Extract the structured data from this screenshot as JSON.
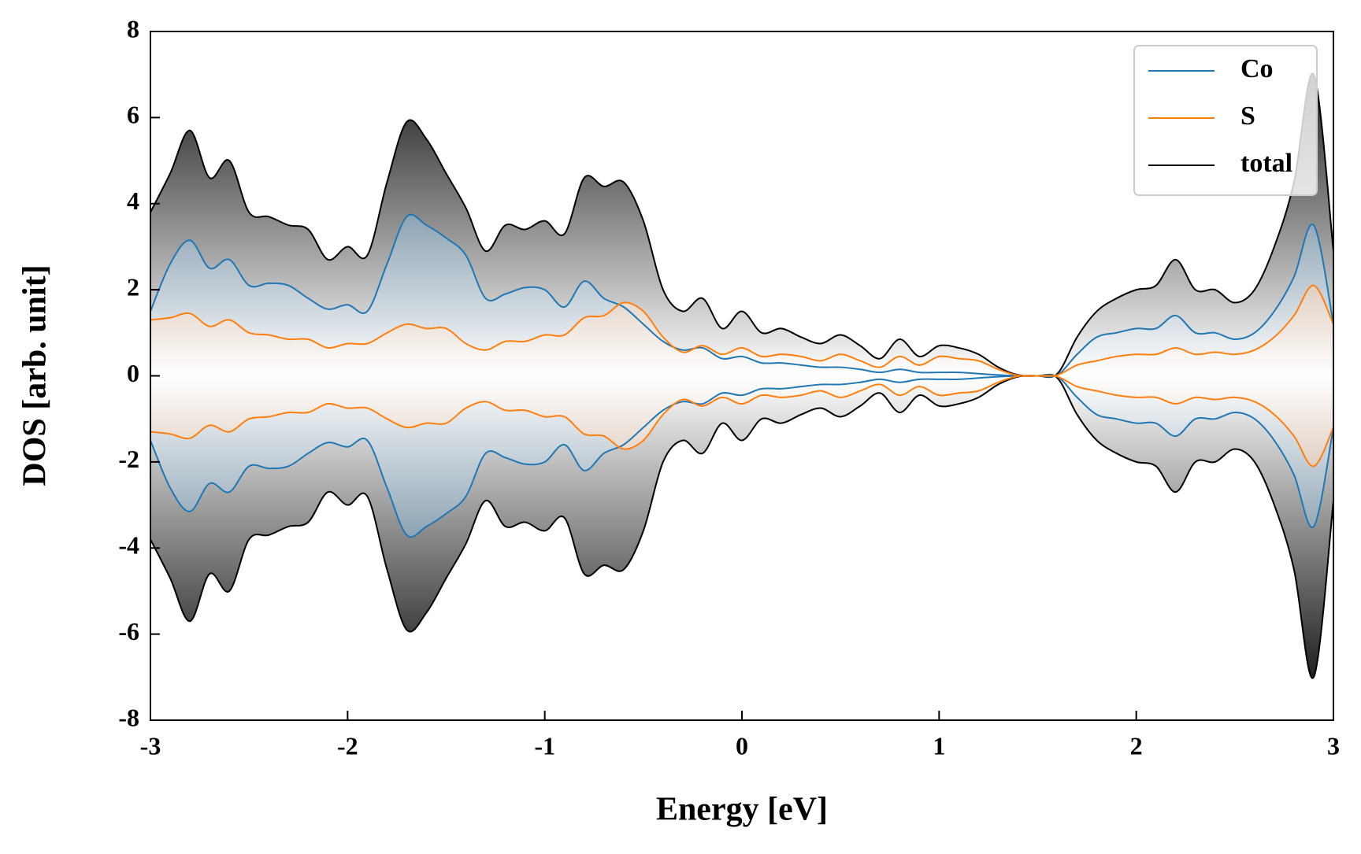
{
  "chart_data": {
    "type": "mirrored-area-line",
    "xlabel": "Energy [eV]",
    "ylabel": "DOS [arb. unit]",
    "x": [
      -3,
      -2.9,
      -2.8,
      -2.7,
      -2.6,
      -2.5,
      -2.4,
      -2.3,
      -2.2,
      -2.1,
      -2,
      -1.9,
      -1.8,
      -1.7,
      -1.6,
      -1.5,
      -1.4,
      -1.3,
      -1.2,
      -1.1,
      -1,
      -0.9,
      -0.8,
      -0.7,
      -0.6,
      -0.5,
      -0.4,
      -0.3,
      -0.2,
      -0.1,
      0,
      0.1,
      0.2,
      0.3,
      0.4,
      0.5,
      0.6,
      0.7,
      0.8,
      0.9,
      1,
      1.1,
      1.2,
      1.3,
      1.4,
      1.5,
      1.6,
      1.7,
      1.8,
      1.9,
      2,
      2.1,
      2.2,
      2.3,
      2.4,
      2.5,
      2.6,
      2.7,
      2.8,
      2.9,
      3
    ],
    "series": [
      {
        "name": "total",
        "color": "#000000",
        "fill": [
          "#ffffff",
          "#000000"
        ],
        "values": [
          3.8,
          4.7,
          5.7,
          4.6,
          5.0,
          3.8,
          3.7,
          3.5,
          3.4,
          2.7,
          3.0,
          2.8,
          4.5,
          5.9,
          5.5,
          4.7,
          3.9,
          2.9,
          3.5,
          3.4,
          3.6,
          3.3,
          4.6,
          4.4,
          4.5,
          3.6,
          2.0,
          1.5,
          1.8,
          1.1,
          1.5,
          1.0,
          1.1,
          0.9,
          0.75,
          0.95,
          0.7,
          0.4,
          0.85,
          0.45,
          0.7,
          0.65,
          0.5,
          0.2,
          0.02,
          0,
          0.05,
          0.9,
          1.5,
          1.8,
          2.0,
          2.1,
          2.7,
          2.0,
          2.0,
          1.7,
          2.0,
          3.0,
          4.5,
          7.0,
          2.9
        ]
      },
      {
        "name": "Co",
        "color": "#1f77b4",
        "fill": [
          "#ffffff",
          "#0b3a5e"
        ],
        "values": [
          1.5,
          2.6,
          3.15,
          2.5,
          2.7,
          2.1,
          2.15,
          2.1,
          1.8,
          1.55,
          1.65,
          1.5,
          2.6,
          3.7,
          3.5,
          3.2,
          2.8,
          1.8,
          1.9,
          2.05,
          2.0,
          1.6,
          2.2,
          1.8,
          1.6,
          1.2,
          0.8,
          0.6,
          0.65,
          0.4,
          0.45,
          0.3,
          0.3,
          0.25,
          0.2,
          0.2,
          0.15,
          0.08,
          0.15,
          0.08,
          0.08,
          0.08,
          0.05,
          0.02,
          0,
          0,
          0.02,
          0.5,
          0.9,
          1.0,
          1.1,
          1.1,
          1.4,
          1.0,
          1.0,
          0.85,
          1.0,
          1.5,
          2.3,
          3.5,
          1.2
        ]
      },
      {
        "name": "S",
        "color": "#ff7f0e",
        "fill": [
          "#ffffff",
          "#8a4a17"
        ],
        "values": [
          1.3,
          1.35,
          1.45,
          1.15,
          1.3,
          1.0,
          0.95,
          0.85,
          0.85,
          0.65,
          0.75,
          0.75,
          1.0,
          1.2,
          1.1,
          1.1,
          0.75,
          0.6,
          0.8,
          0.8,
          0.95,
          0.95,
          1.35,
          1.4,
          1.7,
          1.5,
          0.9,
          0.55,
          0.7,
          0.5,
          0.65,
          0.45,
          0.5,
          0.45,
          0.35,
          0.5,
          0.35,
          0.2,
          0.45,
          0.25,
          0.45,
          0.4,
          0.35,
          0.15,
          0.01,
          0,
          0.02,
          0.25,
          0.35,
          0.45,
          0.5,
          0.5,
          0.65,
          0.5,
          0.55,
          0.5,
          0.6,
          0.9,
          1.4,
          2.1,
          1.2
        ]
      }
    ],
    "legend_order": [
      "Co",
      "S",
      "total"
    ],
    "mirrored": true,
    "xlim": [
      -3,
      3
    ],
    "xticks": [
      -3,
      -2,
      -1,
      0,
      1,
      2,
      3
    ],
    "ylim": [
      -8,
      8
    ],
    "yticks": [
      -8,
      -6,
      -4,
      -2,
      0,
      2,
      4,
      6,
      8
    ],
    "legend": "upper right",
    "grid": false
  }
}
